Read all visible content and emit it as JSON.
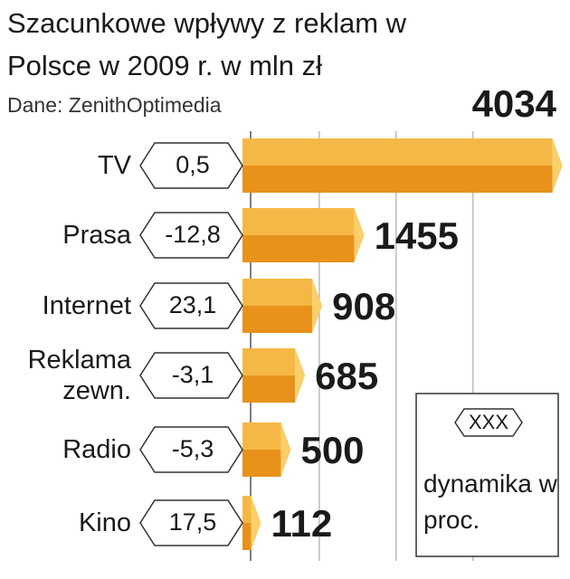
{
  "chart_data": {
    "type": "hbar3d",
    "title": "Szacunkowe wpływy z reklam w Polsce w 2009 r. w mln zł",
    "subtitle": "Dane: ZenithOptimedia",
    "categories": [
      "TV",
      "Prasa",
      "Internet",
      "Reklama zewn.",
      "Radio",
      "Kino"
    ],
    "values": [
      4034,
      1455,
      908,
      685,
      500,
      112
    ],
    "colors": {
      "top": "#f5b847",
      "bottom": "#e8921c",
      "cap": "#f9cf6a"
    },
    "xlim": [
      0,
      4050
    ],
    "xticks": [
      0,
      1000,
      2000,
      3000
    ],
    "grid": true,
    "change": {
      "values": [
        0.5,
        -12.8,
        23.1,
        -3.1,
        -5.3,
        17.5
      ],
      "value_labels": [
        "0,5",
        "-12,8",
        "23,1",
        "-3,1",
        "-5,3",
        "17,5"
      ]
    },
    "legend": {
      "sample": "XXX",
      "label": "dynamika w proc."
    }
  }
}
